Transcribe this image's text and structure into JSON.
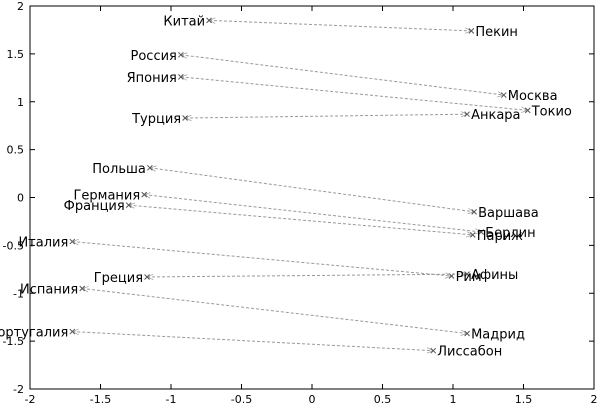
{
  "chart_data": {
    "type": "scatter",
    "title": "",
    "xlabel": "",
    "ylabel": "",
    "xlim": [
      -2,
      2
    ],
    "ylim": [
      -2,
      2
    ],
    "x_ticks": [
      "-2",
      "-1.5",
      "-1",
      "-0.5",
      "0",
      "0.5",
      "1",
      "1.5",
      "2"
    ],
    "y_ticks": [
      "2",
      "1.5",
      "1",
      "0.5",
      "0",
      "-0.5",
      "-1",
      "-1.5",
      "-2"
    ],
    "grid": false,
    "marker_color": "#555555",
    "arrow_color": "#999999",
    "pairs": [
      {
        "country": "Китай",
        "capital": "Пекин",
        "from": [
          -0.73,
          1.85
        ],
        "to": [
          1.13,
          1.74
        ]
      },
      {
        "country": "Россия",
        "capital": "Москва",
        "from": [
          -0.93,
          1.49
        ],
        "to": [
          1.36,
          1.07
        ]
      },
      {
        "country": "Япония",
        "capital": "Токио",
        "from": [
          -0.93,
          1.26
        ],
        "to": [
          1.53,
          0.91
        ]
      },
      {
        "country": "Турция",
        "capital": "Анкара",
        "from": [
          -0.9,
          0.83
        ],
        "to": [
          1.1,
          0.87
        ]
      },
      {
        "country": "Польша",
        "capital": "Варшава",
        "from": [
          -1.15,
          0.31
        ],
        "to": [
          1.15,
          -0.15
        ]
      },
      {
        "country": "Германия",
        "capital": "Берлин",
        "from": [
          -1.19,
          0.03
        ],
        "to": [
          1.2,
          -0.36
        ]
      },
      {
        "country": "Франция",
        "capital": "Париж",
        "from": [
          -1.3,
          -0.08
        ],
        "to": [
          1.14,
          -0.39
        ]
      },
      {
        "country": "Италия",
        "capital": "Рим",
        "from": [
          -1.7,
          -0.46
        ],
        "to": [
          0.99,
          -0.82
        ]
      },
      {
        "country": "Греция",
        "capital": "Афины",
        "from": [
          -1.17,
          -0.83
        ],
        "to": [
          1.1,
          -0.8
        ]
      },
      {
        "country": "Испания",
        "capital": "Мадрид",
        "from": [
          -1.63,
          -0.95
        ],
        "to": [
          1.1,
          -1.42
        ]
      },
      {
        "country": "Португалия",
        "capital": "Лиссабон",
        "from": [
          -1.7,
          -1.4
        ],
        "to": [
          0.86,
          -1.6
        ]
      }
    ]
  }
}
